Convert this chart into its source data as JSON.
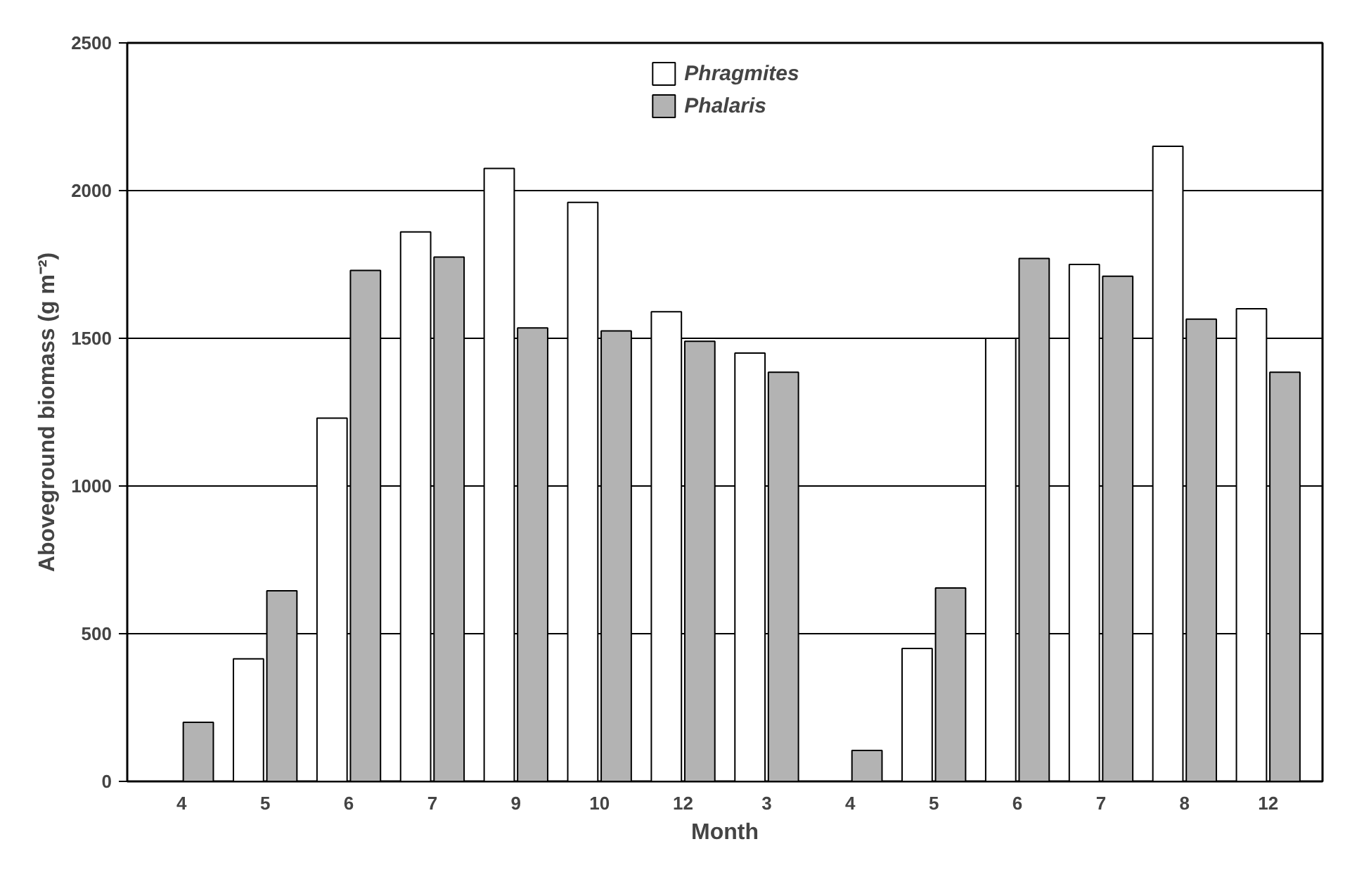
{
  "chart_data": {
    "type": "bar",
    "xlabel": "Month",
    "ylabel": "Aboveground biomass (g m⁻²)",
    "categories": [
      "4",
      "5",
      "6",
      "7",
      "9",
      "10",
      "12",
      "3",
      "4",
      "5",
      "6",
      "7",
      "8",
      "12"
    ],
    "series": [
      {
        "name": "Phragmites",
        "color": "#ffffff",
        "values": [
          null,
          415,
          1230,
          1860,
          2075,
          1960,
          1590,
          1450,
          null,
          450,
          1500,
          1750,
          2150,
          1600
        ]
      },
      {
        "name": "Phalaris",
        "color": "#b3b3b3",
        "values": [
          200,
          645,
          1730,
          1775,
          1535,
          1525,
          1490,
          1385,
          105,
          655,
          1770,
          1710,
          1565,
          1385
        ]
      }
    ],
    "ylim": [
      0,
      2500
    ],
    "yticks": [
      0,
      500,
      1000,
      1500,
      2000,
      2500
    ],
    "grid": "y",
    "legend": "top"
  }
}
